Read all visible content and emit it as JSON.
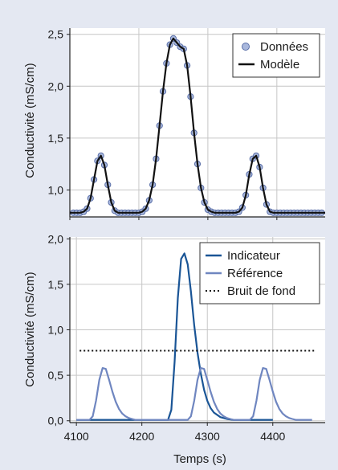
{
  "chart_data": [
    {
      "type": "line",
      "ylabel": "Conductivité (mS/cm)",
      "xlim": [
        4100,
        4470
      ],
      "ylim": [
        0.74,
        2.56
      ],
      "xticks": [
        4100,
        4200,
        4300,
        4400
      ],
      "yticks": [
        "1,0",
        "1,5",
        "2,0",
        "2,5"
      ],
      "ytick_values": [
        1.0,
        1.5,
        2.0,
        2.5
      ],
      "grid": true,
      "legend_position": "top-right",
      "x_tick_labels_shown": false,
      "series": [
        {
          "name": "Données",
          "style": "markers",
          "color": "#a9b8dd",
          "edge_color": "#5a6fa8",
          "x": [
            4105,
            4110,
            4115,
            4120,
            4125,
            4130,
            4135,
            4140,
            4145,
            4150,
            4155,
            4160,
            4165,
            4170,
            4175,
            4180,
            4185,
            4190,
            4195,
            4200,
            4205,
            4210,
            4215,
            4220,
            4225,
            4230,
            4235,
            4240,
            4245,
            4250,
            4255,
            4260,
            4265,
            4270,
            4275,
            4280,
            4285,
            4290,
            4295,
            4300,
            4305,
            4310,
            4315,
            4320,
            4325,
            4330,
            4335,
            4340,
            4345,
            4350,
            4355,
            4360,
            4365,
            4370,
            4375,
            4380,
            4385,
            4390,
            4395,
            4400,
            4405,
            4410,
            4415,
            4420,
            4425,
            4430,
            4435,
            4440,
            4445,
            4450,
            4455,
            4460,
            4465
          ],
          "values": [
            0.78,
            0.78,
            0.78,
            0.79,
            0.82,
            0.92,
            1.1,
            1.28,
            1.33,
            1.24,
            1.05,
            0.88,
            0.8,
            0.78,
            0.78,
            0.78,
            0.78,
            0.78,
            0.78,
            0.78,
            0.79,
            0.82,
            0.9,
            1.05,
            1.3,
            1.62,
            1.95,
            2.22,
            2.4,
            2.46,
            2.42,
            2.38,
            2.36,
            2.2,
            1.9,
            1.55,
            1.25,
            1.02,
            0.88,
            0.81,
            0.79,
            0.78,
            0.78,
            0.78,
            0.78,
            0.78,
            0.78,
            0.78,
            0.79,
            0.83,
            0.95,
            1.15,
            1.3,
            1.33,
            1.22,
            1.02,
            0.86,
            0.79,
            0.78,
            0.78,
            0.78,
            0.78,
            0.78,
            0.78,
            0.78,
            0.78,
            0.78,
            0.78,
            0.78,
            0.78,
            0.78,
            0.78,
            0.78
          ]
        },
        {
          "name": "Modèle",
          "style": "line",
          "color": "#111111",
          "x": [
            4100,
            4105,
            4110,
            4115,
            4120,
            4125,
            4130,
            4135,
            4140,
            4145,
            4150,
            4155,
            4160,
            4165,
            4170,
            4175,
            4180,
            4185,
            4190,
            4195,
            4200,
            4205,
            4210,
            4215,
            4220,
            4225,
            4230,
            4235,
            4240,
            4245,
            4250,
            4255,
            4260,
            4265,
            4270,
            4275,
            4280,
            4285,
            4290,
            4295,
            4300,
            4305,
            4310,
            4315,
            4320,
            4325,
            4330,
            4335,
            4340,
            4345,
            4350,
            4355,
            4360,
            4365,
            4370,
            4375,
            4380,
            4385,
            4390,
            4395,
            4400,
            4405,
            4410,
            4415,
            4420,
            4425,
            4430,
            4435,
            4440,
            4445,
            4450,
            4455,
            4460,
            4465,
            4470
          ],
          "values": [
            0.78,
            0.78,
            0.78,
            0.78,
            0.79,
            0.82,
            0.92,
            1.1,
            1.28,
            1.33,
            1.24,
            1.05,
            0.88,
            0.8,
            0.78,
            0.78,
            0.78,
            0.78,
            0.78,
            0.78,
            0.78,
            0.79,
            0.82,
            0.9,
            1.05,
            1.3,
            1.62,
            1.95,
            2.22,
            2.4,
            2.46,
            2.42,
            2.38,
            2.36,
            2.2,
            1.9,
            1.55,
            1.25,
            1.02,
            0.88,
            0.81,
            0.79,
            0.78,
            0.78,
            0.78,
            0.78,
            0.78,
            0.78,
            0.78,
            0.79,
            0.83,
            0.95,
            1.15,
            1.3,
            1.33,
            1.22,
            1.02,
            0.86,
            0.79,
            0.78,
            0.78,
            0.78,
            0.78,
            0.78,
            0.78,
            0.78,
            0.78,
            0.78,
            0.78,
            0.78,
            0.78,
            0.78,
            0.78,
            0.78,
            0.78
          ]
        }
      ]
    },
    {
      "type": "line",
      "ylabel": "Conductivité (mS/cm)",
      "xlabel": "Temps (s)",
      "xlim": [
        4090,
        4480
      ],
      "ylim": [
        -0.02,
        2.02
      ],
      "xticks": [
        4100,
        4200,
        4300,
        4400
      ],
      "yticks": [
        "0,0",
        "0,5",
        "1,0",
        "1,5",
        "2,0"
      ],
      "ytick_values": [
        0.0,
        0.5,
        1.0,
        1.5,
        2.0
      ],
      "grid": true,
      "legend_position": "top-right",
      "series": [
        {
          "name": "Indicateur",
          "style": "line",
          "color": "#1a5596",
          "x": [
            4100,
            4200,
            4240,
            4245,
            4250,
            4255,
            4260,
            4265,
            4270,
            4275,
            4280,
            4285,
            4290,
            4295,
            4300,
            4305,
            4310,
            4320,
            4330,
            4340,
            4350,
            4400
          ],
          "values": [
            0.01,
            0.01,
            0.01,
            0.12,
            0.65,
            1.35,
            1.78,
            1.84,
            1.72,
            1.42,
            1.05,
            0.75,
            0.52,
            0.34,
            0.22,
            0.14,
            0.09,
            0.04,
            0.02,
            0.01,
            0.01,
            0.01
          ]
        },
        {
          "name": "Référence",
          "style": "line",
          "color": "#6f86c0",
          "x": [
            4100,
            4120,
            4125,
            4130,
            4135,
            4140,
            4145,
            4150,
            4155,
            4160,
            4165,
            4170,
            4175,
            4180,
            4185,
            4190,
            4270,
            4275,
            4280,
            4285,
            4290,
            4295,
            4300,
            4305,
            4310,
            4315,
            4320,
            4325,
            4330,
            4335,
            4340,
            4345,
            4350,
            4365,
            4370,
            4375,
            4380,
            4385,
            4390,
            4395,
            4400,
            4405,
            4410,
            4415,
            4420,
            4425,
            4430,
            4435,
            4440,
            4460
          ],
          "values": [
            0.01,
            0.01,
            0.05,
            0.22,
            0.45,
            0.58,
            0.57,
            0.45,
            0.32,
            0.21,
            0.13,
            0.08,
            0.05,
            0.03,
            0.02,
            0.01,
            0.01,
            0.05,
            0.22,
            0.45,
            0.58,
            0.57,
            0.45,
            0.32,
            0.21,
            0.13,
            0.08,
            0.05,
            0.03,
            0.02,
            0.01,
            0.01,
            0.01,
            0.01,
            0.05,
            0.22,
            0.45,
            0.58,
            0.57,
            0.45,
            0.32,
            0.21,
            0.13,
            0.08,
            0.05,
            0.03,
            0.02,
            0.01,
            0.01,
            0.01
          ]
        },
        {
          "name": "Bruit de fond",
          "style": "dotted",
          "color": "#111111",
          "x": [
            4105,
            4465
          ],
          "values": [
            0.77,
            0.77
          ]
        }
      ]
    }
  ]
}
